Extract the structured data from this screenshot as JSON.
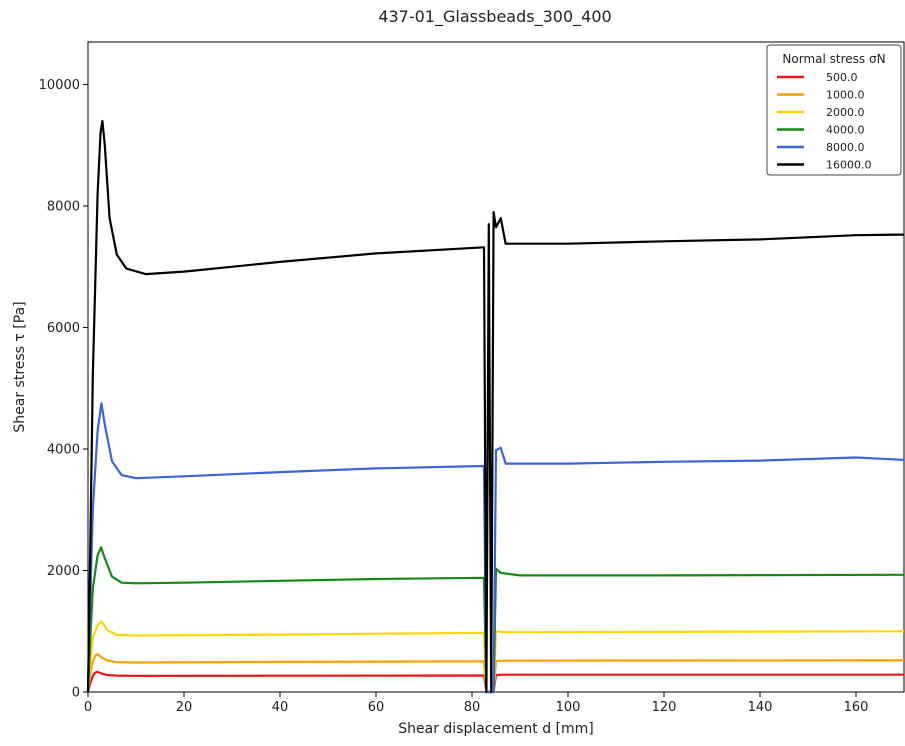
{
  "chart_data": {
    "type": "line",
    "title": "437-01_Glassbeads_300_400",
    "xlabel": "Shear displacement d [mm]",
    "ylabel": "Shear stress τ [Pa]",
    "xlim": [
      0,
      170
    ],
    "ylim": [
      0,
      10700
    ],
    "xticks": [
      0,
      20,
      40,
      60,
      80,
      100,
      120,
      140,
      160
    ],
    "yticks": [
      0,
      2000,
      4000,
      6000,
      8000,
      10000
    ],
    "grid": false,
    "legend": {
      "title": "Normal stress σN",
      "placement": "top-right"
    },
    "series": [
      {
        "name": "500.0",
        "color": "#e41a1c",
        "points": [
          [
            0,
            0
          ],
          [
            0.5,
            150
          ],
          [
            1,
            260
          ],
          [
            1.5,
            320
          ],
          [
            2,
            330
          ],
          [
            3,
            300
          ],
          [
            4,
            280
          ],
          [
            6,
            270
          ],
          [
            10,
            265
          ],
          [
            40,
            268
          ],
          [
            82.5,
            272
          ],
          [
            83,
            0
          ],
          [
            84.5,
            0
          ],
          [
            85,
            280
          ],
          [
            87,
            285
          ],
          [
            120,
            285
          ],
          [
            170,
            285
          ]
        ]
      },
      {
        "name": "1000.0",
        "color": "#ff9f00",
        "points": [
          [
            0,
            0
          ],
          [
            0.5,
            300
          ],
          [
            1,
            500
          ],
          [
            1.5,
            600
          ],
          [
            2,
            620
          ],
          [
            3,
            560
          ],
          [
            4,
            520
          ],
          [
            6,
            490
          ],
          [
            10,
            485
          ],
          [
            40,
            495
          ],
          [
            82.5,
            505
          ],
          [
            83,
            0
          ],
          [
            84.5,
            0
          ],
          [
            85,
            510
          ],
          [
            87,
            515
          ],
          [
            120,
            518
          ],
          [
            170,
            520
          ]
        ]
      },
      {
        "name": "2000.0",
        "color": "#ffd600",
        "points": [
          [
            0,
            0
          ],
          [
            0.5,
            500
          ],
          [
            1,
            900
          ],
          [
            2,
            1100
          ],
          [
            2.8,
            1160
          ],
          [
            4,
            1020
          ],
          [
            6,
            940
          ],
          [
            10,
            930
          ],
          [
            40,
            945
          ],
          [
            82.5,
            975
          ],
          [
            83,
            0
          ],
          [
            84.5,
            0
          ],
          [
            85,
            1000
          ],
          [
            87,
            985
          ],
          [
            120,
            990
          ],
          [
            170,
            1000
          ]
        ]
      },
      {
        "name": "4000.0",
        "color": "#138a13",
        "points": [
          [
            0,
            0
          ],
          [
            0.5,
            900
          ],
          [
            1,
            1700
          ],
          [
            2,
            2250
          ],
          [
            2.7,
            2380
          ],
          [
            3.5,
            2200
          ],
          [
            5,
            1900
          ],
          [
            7,
            1800
          ],
          [
            10,
            1790
          ],
          [
            20,
            1800
          ],
          [
            40,
            1830
          ],
          [
            60,
            1860
          ],
          [
            82.5,
            1880
          ],
          [
            83,
            0
          ],
          [
            84.5,
            0
          ],
          [
            85,
            2030
          ],
          [
            86,
            1960
          ],
          [
            90,
            1920
          ],
          [
            120,
            1920
          ],
          [
            170,
            1930
          ]
        ]
      },
      {
        "name": "8000.0",
        "color": "#3b64d8",
        "points": [
          [
            0,
            0
          ],
          [
            0.5,
            1600
          ],
          [
            1,
            3000
          ],
          [
            2,
            4300
          ],
          [
            2.8,
            4750
          ],
          [
            3.5,
            4400
          ],
          [
            5,
            3800
          ],
          [
            7,
            3570
          ],
          [
            10,
            3520
          ],
          [
            20,
            3550
          ],
          [
            40,
            3620
          ],
          [
            60,
            3680
          ],
          [
            82.5,
            3720
          ],
          [
            83,
            0
          ],
          [
            84.5,
            0
          ],
          [
            85,
            3980
          ],
          [
            86,
            4020
          ],
          [
            87,
            3760
          ],
          [
            100,
            3760
          ],
          [
            120,
            3790
          ],
          [
            140,
            3810
          ],
          [
            160,
            3860
          ],
          [
            170,
            3820
          ]
        ]
      },
      {
        "name": "16000.0",
        "color": "#000000",
        "points": [
          [
            0,
            0
          ],
          [
            0.5,
            2500
          ],
          [
            1,
            5200
          ],
          [
            2,
            8200
          ],
          [
            2.6,
            9200
          ],
          [
            3,
            9400
          ],
          [
            3.5,
            9000
          ],
          [
            4.5,
            7800
          ],
          [
            6,
            7200
          ],
          [
            8,
            6970
          ],
          [
            12,
            6880
          ],
          [
            20,
            6920
          ],
          [
            40,
            7080
          ],
          [
            60,
            7220
          ],
          [
            82.5,
            7320
          ],
          [
            83,
            0
          ],
          [
            83.5,
            7700
          ],
          [
            84,
            0
          ],
          [
            84.5,
            7900
          ],
          [
            85,
            7650
          ],
          [
            86,
            7800
          ],
          [
            87,
            7380
          ],
          [
            100,
            7380
          ],
          [
            120,
            7420
          ],
          [
            140,
            7450
          ],
          [
            160,
            7520
          ],
          [
            170,
            7530
          ]
        ]
      }
    ]
  }
}
